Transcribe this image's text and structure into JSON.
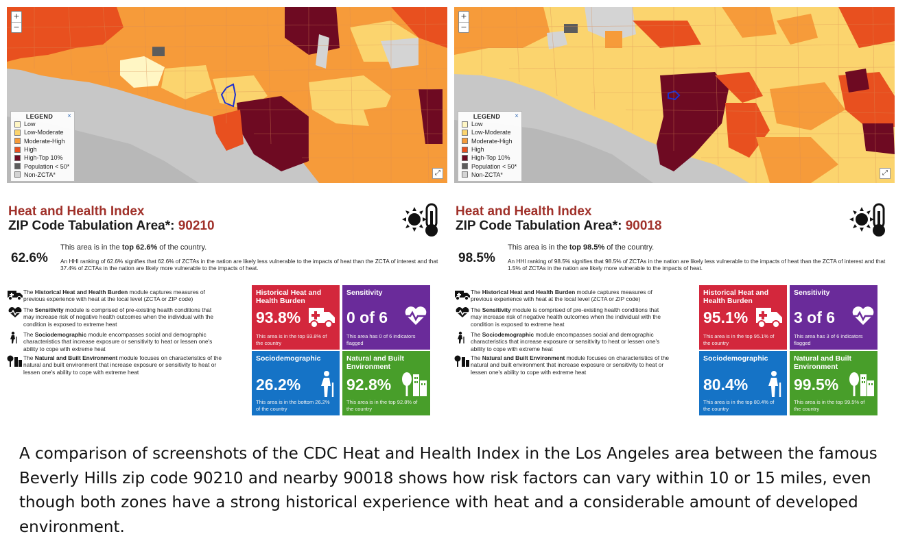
{
  "legend": {
    "title": "LEGEND",
    "close": "×",
    "items": [
      {
        "label": "Low",
        "color": "#fff6c4"
      },
      {
        "label": "Low-Moderate",
        "color": "#fbd46e"
      },
      {
        "label": "Moderate-High",
        "color": "#f69b3a"
      },
      {
        "label": "High",
        "color": "#e8501f"
      },
      {
        "label": "High-Top 10%",
        "color": "#6e0a22"
      },
      {
        "label": "Population < 50*",
        "color": "#5c5c5c"
      },
      {
        "label": "Non-ZCTA*",
        "color": "#d4d4d4"
      }
    ]
  },
  "map_controls": {
    "zoom_in": "+",
    "zoom_out": "−",
    "expand": "⤢"
  },
  "panels": [
    {
      "title": "Heat and Health Index",
      "subtitle_prefix": "ZIP Code Tabulation Area*: ",
      "zip": "90210",
      "rank": "62.6%",
      "rank_line1_pre": "This area is in the ",
      "rank_line1_bold": "top 62.6%",
      "rank_line1_post": " of the country.",
      "rank_detail": "An HHI ranking of 62.6% signifies that 62.6% of ZCTAs in the nation are likely less vulnerable to the impacts of heat than the ZCTA of interest and that 37.4% of ZCTAs in the nation are likely more vulnerable to the impacts of heat.",
      "tiles": [
        {
          "label": "Historical Heat and Health Burden",
          "value": "93.8%",
          "note": "This area is in the top 93.8% of the country"
        },
        {
          "label": "Sensitivity",
          "value": "0 of 6",
          "note": "This area has 0 of 6 indicators flagged"
        },
        {
          "label": "Sociodemographic",
          "value": "26.2%",
          "note": "This area is in the bottom 26.2% of the country"
        },
        {
          "label": "Natural and Built Environment",
          "value": "92.8%",
          "note": "This area is in the top 92.8% of the country"
        }
      ]
    },
    {
      "title": "Heat and Health Index",
      "subtitle_prefix": "ZIP Code Tabulation Area*: ",
      "zip": "90018",
      "rank": "98.5%",
      "rank_line1_pre": "This area is in the ",
      "rank_line1_bold": "top 98.5%",
      "rank_line1_post": " of the country.",
      "rank_detail": "An HHI ranking of 98.5% signifies that 98.5% of ZCTAs in the nation are likely less vulnerable to the impacts of heat than the ZCTA of interest and that 1.5% of ZCTAs in the nation are likely more vulnerable to the impacts of heat.",
      "tiles": [
        {
          "label": "Historical Heat and Health Burden",
          "value": "95.1%",
          "note": "This area is in the top 95.1% of the country"
        },
        {
          "label": "Sensitivity",
          "value": "3 of 6",
          "note": "This area has 3 of 6 indicators flagged"
        },
        {
          "label": "Sociodemographic",
          "value": "80.4%",
          "note": "This area is in the top 80.4% of the country"
        },
        {
          "label": "Natural and Built Environment",
          "value": "99.5%",
          "note": "This area is in the top 99.5% of the country"
        }
      ]
    }
  ],
  "modules": [
    {
      "pre": "The ",
      "bold": "Historical Heat and Health Burden",
      "post": " module captures measures of previous experience with heat at the local level (ZCTA or ZIP code)"
    },
    {
      "pre": "The ",
      "bold": "Sensitivity",
      "post": " module is comprised of pre-existing health conditions that may increase risk of negative health outcomes when the individual with the condition is exposed to extreme heat"
    },
    {
      "pre": "The ",
      "bold": "Sociodemographic",
      "post": " module encompasses social and demographic characteristics that increase exposure or sensitivity to heat or lessen one's ability to cope with extreme heat"
    },
    {
      "pre": "The ",
      "bold": "Natural and Built Environment",
      "post": " module focuses on characteristics of the natural and built environment that increase exposure or sensitivity to heat or lessen one's ability to cope with extreme heat"
    }
  ],
  "caption": "A comparison of screenshots of the CDC Heat and Health Index in the Los Angeles area between the famous Beverly Hills zip code 90210 and nearby 90018 shows how risk factors can vary within 10 or 15 miles, even though both zones have a strong historical experience with heat and a considerable amount of developed environment."
}
